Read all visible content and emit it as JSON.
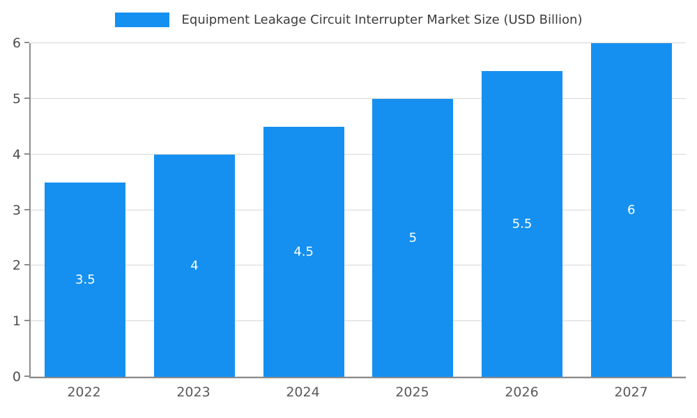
{
  "chart_data": {
    "type": "bar",
    "title": "Equipment Leakage Circuit Interrupter Market Size (USD Billion)",
    "categories": [
      "2022",
      "2023",
      "2024",
      "2025",
      "2026",
      "2027"
    ],
    "values": [
      3.5,
      4,
      4.5,
      5,
      5.5,
      6
    ],
    "value_labels": [
      "3.5",
      "4",
      "4.5",
      "5",
      "5.5",
      "6"
    ],
    "xlabel": "",
    "ylabel": "",
    "ylim": [
      0,
      6
    ],
    "yticks": [
      "0",
      "1",
      "2",
      "3",
      "4",
      "5",
      "6"
    ],
    "grid": true,
    "legend_position": "top-center",
    "colors": {
      "bar": "#1590F0",
      "value_label": "#ffffff",
      "gridline": "#d6d6d6",
      "axis": "#8c8c8c",
      "tick_label": "#4d4d4d",
      "title": "#3c3c3c"
    }
  }
}
